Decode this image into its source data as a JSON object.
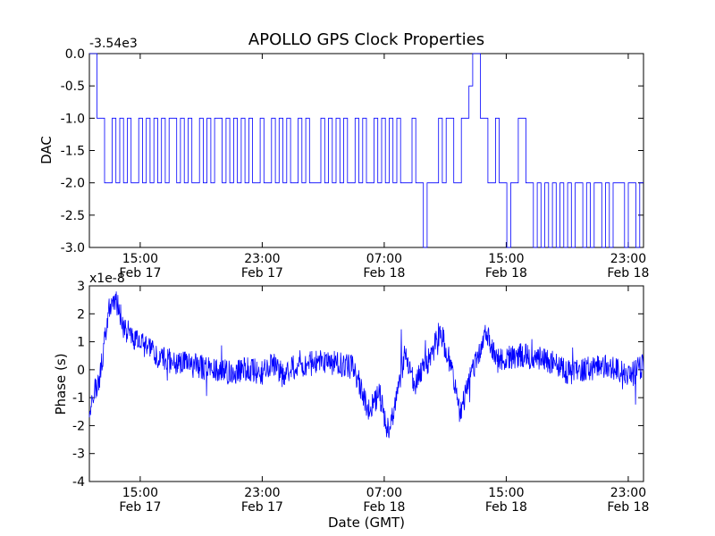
{
  "title": "APOLLO GPS Clock Properties",
  "colors": {
    "series": "#0000ff",
    "axes": "#000000",
    "background": "#ffffff"
  },
  "chart_data": [
    {
      "type": "line",
      "subplot": "top",
      "title": "APOLLO GPS Clock Properties",
      "xlabel": "",
      "ylabel": "DAC",
      "offset_label": "-3.54e3",
      "xlim": [
        "Feb 17 11:40",
        "Feb 19 00:00"
      ],
      "ylim": [
        -3.0,
        0.0
      ],
      "yticks": [
        {
          "value": 0.0,
          "label": "0.0"
        },
        {
          "value": -0.5,
          "label": "-0.5"
        },
        {
          "value": -1.0,
          "label": "-1.0"
        },
        {
          "value": -1.5,
          "label": "-1.5"
        },
        {
          "value": -2.0,
          "label": "-2.0"
        },
        {
          "value": -2.5,
          "label": "-2.5"
        },
        {
          "value": -3.0,
          "label": "-3.0"
        }
      ],
      "xticks": [
        {
          "x": "Feb 17 15:00",
          "label": "15:00",
          "sub": "Feb 17"
        },
        {
          "x": "Feb 17 23:00",
          "label": "23:00",
          "sub": "Feb 17"
        },
        {
          "x": "Feb 18 07:00",
          "label": "07:00",
          "sub": "Feb 18"
        },
        {
          "x": "Feb 18 15:00",
          "label": "15:00",
          "sub": "Feb 18"
        },
        {
          "x": "Feb 18 23:00",
          "label": "23:00",
          "sub": "Feb 18"
        }
      ],
      "grid": false,
      "step_values": [
        0,
        0,
        -1,
        -1,
        -2,
        -2,
        -1,
        -2,
        -1,
        -2,
        -1,
        -2,
        -2,
        -1,
        -2,
        -1,
        -2,
        -1,
        -2,
        -1,
        -2,
        -1,
        -1,
        -2,
        -1,
        -2,
        -1,
        -2,
        -2,
        -1,
        -2,
        -1,
        -2,
        -1,
        -1,
        -2,
        -1,
        -2,
        -1,
        -2,
        -1,
        -2,
        -1,
        -2,
        -2,
        -1,
        -2,
        -2,
        -1,
        -2,
        -1,
        -2,
        -1,
        -2,
        -2,
        -1,
        -2,
        -1,
        -2,
        -2,
        -2,
        -1,
        -2,
        -1,
        -2,
        -1,
        -2,
        -1,
        -2,
        -2,
        -1,
        -2,
        -1,
        -2,
        -2,
        -1,
        -2,
        -1,
        -2,
        -1,
        -2,
        -1,
        -2,
        -2,
        -2,
        -1,
        -2,
        -2,
        -3,
        -2,
        -2,
        -2,
        -1,
        -2,
        -1,
        -1,
        -2,
        -2,
        -1,
        -1,
        -0.5,
        0,
        0,
        -1,
        -1,
        -2,
        -2,
        -1,
        -2,
        -2,
        -3,
        -2,
        -2,
        -1,
        -1,
        -2,
        -2,
        -3,
        -2,
        -3,
        -2,
        -3,
        -2,
        -3,
        -2,
        -3,
        -2,
        -3,
        -2,
        -2,
        -3,
        -2,
        -3,
        -2,
        -2,
        -3,
        -2,
        -3,
        -2,
        -2,
        -2,
        -3,
        -2,
        -2,
        -3,
        -2
      ]
    },
    {
      "type": "line",
      "subplot": "bottom",
      "xlabel": "Date (GMT)",
      "ylabel": "Phase (s)",
      "offset_label": "x1e-8",
      "xlim": [
        "Feb 17 11:40",
        "Feb 19 00:00"
      ],
      "ylim": [
        -4,
        3
      ],
      "yticks": [
        {
          "value": 3,
          "label": "3"
        },
        {
          "value": 2,
          "label": "2"
        },
        {
          "value": 1,
          "label": "1"
        },
        {
          "value": 0,
          "label": "0"
        },
        {
          "value": -1,
          "label": "-1"
        },
        {
          "value": -2,
          "label": "-2"
        },
        {
          "value": -3,
          "label": "-3"
        },
        {
          "value": -4,
          "label": "-4"
        }
      ],
      "xticks": [
        {
          "x": "Feb 17 15:00",
          "label": "15:00",
          "sub": "Feb 17"
        },
        {
          "x": "Feb 17 23:00",
          "label": "23:00",
          "sub": "Feb 17"
        },
        {
          "x": "Feb 18 07:00",
          "label": "07:00",
          "sub": "Feb 18"
        },
        {
          "x": "Feb 18 15:00",
          "label": "15:00",
          "sub": "Feb 18"
        },
        {
          "x": "Feb 18 23:00",
          "label": "23:00",
          "sub": "Feb 18"
        }
      ],
      "grid": false,
      "envelope": [
        [
          "Feb 17 11:40",
          -1.3
        ],
        [
          "Feb 17 12:20",
          -0.3
        ],
        [
          "Feb 17 13:00",
          2.3
        ],
        [
          "Feb 17 13:20",
          2.6
        ],
        [
          "Feb 17 14:00",
          1.4
        ],
        [
          "Feb 17 15:00",
          1.0
        ],
        [
          "Feb 17 16:00",
          0.5
        ],
        [
          "Feb 17 17:00",
          0.3
        ],
        [
          "Feb 17 18:00",
          0.2
        ],
        [
          "Feb 17 19:00",
          0.1
        ],
        [
          "Feb 17 20:00",
          0.0
        ],
        [
          "Feb 17 21:00",
          -0.1
        ],
        [
          "Feb 17 22:00",
          0.0
        ],
        [
          "Feb 17 23:00",
          -0.1
        ],
        [
          "Feb 17 23:40",
          0.2
        ],
        [
          "Feb 18 00:20",
          -0.2
        ],
        [
          "Feb 18 01:00",
          0.1
        ],
        [
          "Feb 18 02:00",
          0.2
        ],
        [
          "Feb 18 03:00",
          0.3
        ],
        [
          "Feb 18 04:00",
          0.2
        ],
        [
          "Feb 18 05:00",
          0.1
        ],
        [
          "Feb 18 06:00",
          -1.5
        ],
        [
          "Feb 18 06:40",
          -0.8
        ],
        [
          "Feb 18 07:20",
          -2.4
        ],
        [
          "Feb 18 07:40",
          -1.2
        ],
        [
          "Feb 18 08:20",
          0.5
        ],
        [
          "Feb 18 09:00",
          -0.5
        ],
        [
          "Feb 18 10:00",
          0.4
        ],
        [
          "Feb 18 10:40",
          1.4
        ],
        [
          "Feb 18 11:20",
          0.2
        ],
        [
          "Feb 18 12:00",
          -1.6
        ],
        [
          "Feb 18 12:40",
          -0.2
        ],
        [
          "Feb 18 13:20",
          0.8
        ],
        [
          "Feb 18 13:40",
          1.4
        ],
        [
          "Feb 18 14:20",
          0.3
        ],
        [
          "Feb 18 15:00",
          0.4
        ],
        [
          "Feb 18 16:00",
          0.5
        ],
        [
          "Feb 18 17:00",
          0.4
        ],
        [
          "Feb 18 18:00",
          0.3
        ],
        [
          "Feb 18 19:00",
          -0.1
        ],
        [
          "Feb 18 20:00",
          0.0
        ],
        [
          "Feb 18 21:00",
          0.1
        ],
        [
          "Feb 18 22:00",
          0.1
        ],
        [
          "Feb 18 23:00",
          -0.3
        ],
        [
          "Feb 19 00:00",
          0.2
        ]
      ]
    }
  ]
}
